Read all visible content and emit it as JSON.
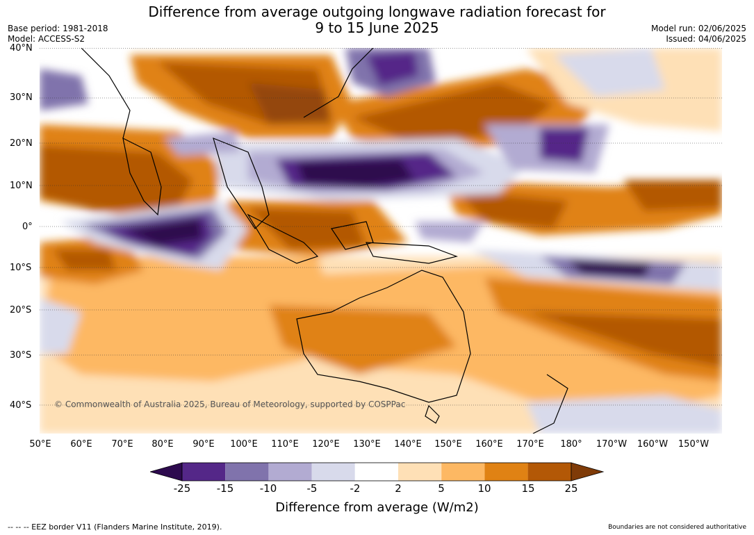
{
  "title_line1": "Difference from average outgoing longwave radiation forecast for",
  "title_line2": "9 to 15 June 2025",
  "left_meta": {
    "base_period": "Base period: 1981-2018",
    "model": "Model: ACCESS-S2"
  },
  "right_meta": {
    "model_run": "Model run: 02/06/2025",
    "issued": "Issued: 04/06/2025"
  },
  "lat_labels": [
    "40°N",
    "30°N",
    "20°N",
    "10°N",
    "0°",
    "10°S",
    "20°S",
    "30°S",
    "40°S"
  ],
  "lon_labels": [
    "50°E",
    "60°E",
    "70°E",
    "80°E",
    "90°E",
    "100°E",
    "110°E",
    "120°E",
    "130°E",
    "140°E",
    "150°E",
    "160°E",
    "170°E",
    "180°",
    "170°W",
    "160°W",
    "150°W"
  ],
  "copyright": "© Commonwealth of Australia 2025, Bureau of Meteorology, supported by COSPPac",
  "colorbar": {
    "ticks": [
      "-25",
      "-15",
      "-10",
      "-5",
      "-2",
      "2",
      "5",
      "10",
      "15",
      "25"
    ],
    "colors": [
      "#2d0a4e",
      "#542788",
      "#8073ac",
      "#b2abd2",
      "#d8daeb",
      "#ffffff",
      "#fee0b6",
      "#fdb863",
      "#e08214",
      "#b35806",
      "#7f3b08"
    ],
    "label": "Difference from average (W/m2)"
  },
  "footer_left": "--  --  -- EEZ border V11 (Flanders Marine Institute, 2019).",
  "footer_right": "Boundaries are not considered authoritative"
}
